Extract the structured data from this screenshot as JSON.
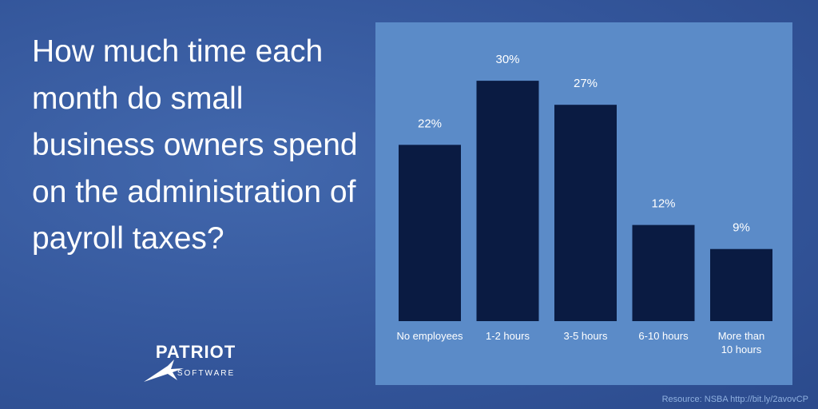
{
  "chart_data": {
    "type": "bar",
    "title": "How much time each month do small business owners spend on the administration of payroll taxes?",
    "categories": [
      "No employees",
      "1-2 hours",
      "3-5 hours",
      "6-10 hours",
      "More than 10 hours"
    ],
    "values": [
      22,
      30,
      27,
      12,
      9
    ],
    "value_labels": [
      "22%",
      "30%",
      "27%",
      "12%",
      "9%"
    ],
    "color": "#0a1b42",
    "source": "Resource: NSBA http://bit.ly/2avovCP"
  },
  "logo": {
    "name": "PATRIOT",
    "tagline": "SOFTWARE"
  }
}
